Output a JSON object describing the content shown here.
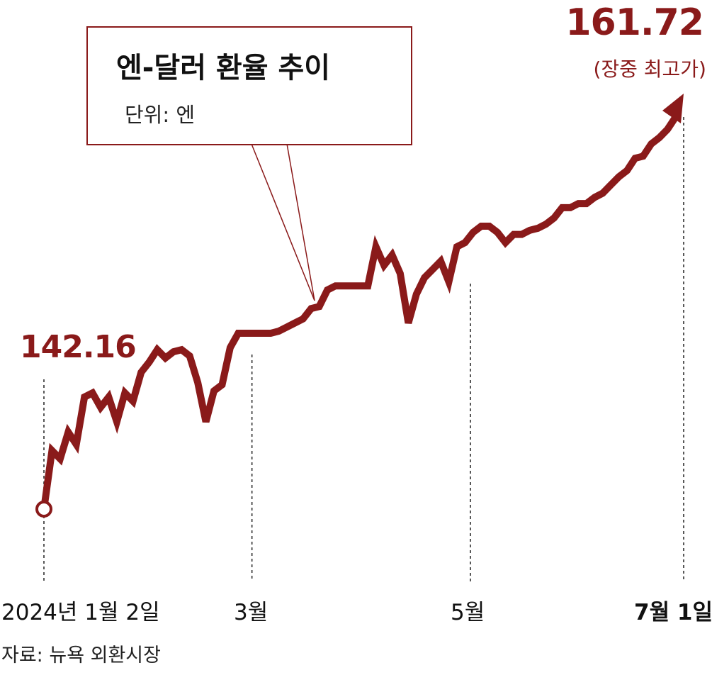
{
  "chart_data": {
    "type": "line",
    "title": "엔-달러 환율 추이",
    "unit_label": "단위: 엔",
    "source": "자료: 뉴욕 외환시장",
    "color": "#8a1a1a",
    "start": {
      "label": "142.16",
      "value": 142.16
    },
    "end": {
      "label": "161.72",
      "note": "(장중 최고가)",
      "value": 161.72
    },
    "x_ticks": [
      {
        "label": "2024년 1월  2일",
        "index": 0,
        "bold": false
      },
      {
        "label": "3월",
        "index": 40,
        "bold": false
      },
      {
        "label": "5월",
        "index": 82,
        "bold": false
      },
      {
        "label": "7월 1일",
        "index": 123,
        "bold": true
      }
    ],
    "ylim": [
      140.0,
      163.0
    ],
    "series": [
      {
        "values": [
          142.16,
          145.0,
          144.6,
          145.9,
          145.3,
          147.6,
          147.8,
          147.1,
          147.6,
          146.4,
          147.8,
          147.4,
          148.8,
          149.3,
          149.9,
          149.5,
          149.8,
          149.9,
          149.6,
          148.3,
          146.4,
          147.9,
          148.2,
          150.0,
          150.7,
          150.7,
          150.7,
          150.7,
          150.7,
          150.8,
          151.0,
          151.2,
          151.4,
          151.9,
          152.0,
          152.8,
          153.0,
          153.0,
          153.0,
          153.0,
          153.0,
          154.9,
          154.0,
          154.5,
          153.6,
          151.2,
          152.6,
          153.4,
          153.8,
          154.2,
          153.2,
          154.9,
          155.1,
          155.6,
          155.9,
          155.9,
          155.6,
          155.1,
          155.5,
          155.5,
          155.7,
          155.8,
          156.0,
          156.3,
          156.8,
          156.8,
          157.0,
          157.0,
          157.3,
          157.5,
          157.9,
          158.3,
          158.6,
          159.2,
          159.3,
          159.9,
          160.2,
          160.6,
          161.2,
          161.72
        ]
      }
    ]
  }
}
